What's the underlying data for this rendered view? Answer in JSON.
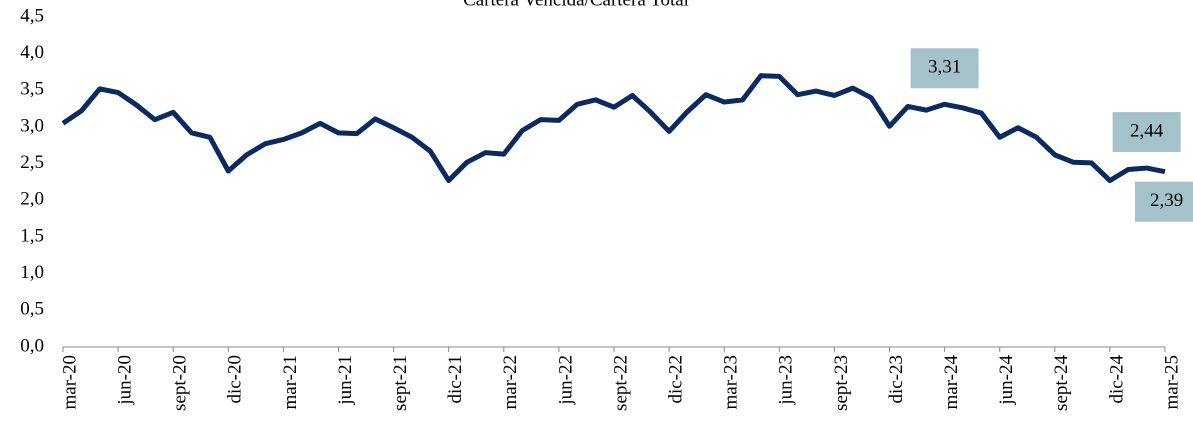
{
  "chart_data": {
    "type": "line",
    "title": "Cartera Vencida/Cartera Total",
    "categories": [
      "mar-20",
      null,
      null,
      "jun-20",
      null,
      null,
      "sept-20",
      null,
      null,
      "dic-20",
      null,
      null,
      "mar-21",
      null,
      null,
      "jun-21",
      null,
      null,
      "sept-21",
      null,
      null,
      "dic-21",
      null,
      null,
      "mar-22",
      null,
      null,
      "jun-22",
      null,
      null,
      "sept-22",
      null,
      null,
      "dic-22",
      null,
      null,
      "mar-23",
      null,
      null,
      "jun-23",
      null,
      null,
      "sept-23",
      null,
      null,
      "dic-23",
      null,
      null,
      "mar-24",
      null,
      null,
      "jun-24",
      null,
      null,
      "sept-24",
      null,
      null,
      "dic-24",
      null,
      null,
      "mar-25"
    ],
    "values": [
      3.05,
      3.22,
      3.52,
      3.47,
      3.3,
      3.1,
      3.2,
      2.92,
      2.86,
      2.4,
      2.62,
      2.77,
      2.83,
      2.92,
      3.05,
      2.92,
      2.91,
      3.11,
      2.99,
      2.86,
      2.67,
      2.27,
      2.52,
      2.65,
      2.63,
      2.95,
      3.1,
      3.09,
      3.31,
      3.37,
      3.27,
      3.43,
      3.2,
      2.94,
      3.21,
      3.44,
      3.34,
      3.37,
      3.7,
      3.69,
      3.44,
      3.49,
      3.43,
      3.53,
      3.4,
      3.01,
      3.28,
      3.23,
      3.31,
      3.26,
      3.19,
      2.86,
      2.99,
      2.86,
      2.62,
      2.52,
      2.51,
      2.27,
      2.42,
      2.44,
      2.39
    ],
    "value_labels": [
      null,
      null,
      null,
      null,
      null,
      null,
      null,
      null,
      null,
      null,
      null,
      null,
      null,
      null,
      null,
      null,
      null,
      null,
      null,
      null,
      null,
      null,
      null,
      null,
      null,
      null,
      null,
      null,
      null,
      null,
      null,
      null,
      null,
      null,
      null,
      null,
      null,
      null,
      null,
      null,
      null,
      null,
      null,
      null,
      null,
      null,
      null,
      null,
      "3,31",
      null,
      null,
      null,
      null,
      null,
      null,
      null,
      null,
      null,
      null,
      "2,44",
      "2,39"
    ],
    "color": "#0b2a5f",
    "label_box_color": "#a5c2ca",
    "ylim": [
      0,
      4.5
    ],
    "yticks": [
      {
        "value": 0,
        "label": "0,0"
      },
      {
        "value": 0.5,
        "label": "0,5"
      },
      {
        "value": 1,
        "label": "1,0"
      },
      {
        "value": 1.5,
        "label": "1,5"
      },
      {
        "value": 2,
        "label": "2,0"
      },
      {
        "value": 2.5,
        "label": "2,5"
      },
      {
        "value": 3,
        "label": "3,0"
      },
      {
        "value": 3.5,
        "label": "3,5"
      },
      {
        "value": 4,
        "label": "4,0"
      },
      {
        "value": 4.5,
        "label": "4,5"
      }
    ],
    "grid": false
  }
}
